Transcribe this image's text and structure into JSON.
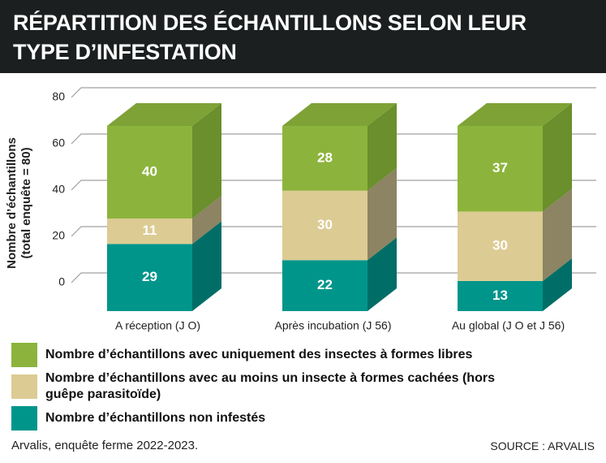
{
  "title": "RÉPARTITION DES ÉCHANTILLONS SELON LEUR TYPE D’INFESTATION",
  "chart_data": {
    "type": "bar3d_stacked",
    "ylabel": [
      "Nombre d’échantillons",
      "(total enquête = 80)"
    ],
    "categories": [
      "A réception (J O)",
      "Après incubation (J 56)",
      "Au global (J O et J 56)"
    ],
    "series": [
      {
        "name": "Nombre d’échantillons avec uniquement des insectes à formes libres",
        "color": "#8cb43c",
        "side": "#6a8f2c",
        "values": [
          40,
          28,
          37
        ]
      },
      {
        "name": "Nombre d’échantillons avec au moins un insecte à formes cachées (hors guêpe parasitoïde)",
        "color": "#dccb93",
        "side": "#8c8462",
        "values": [
          11,
          30,
          30
        ]
      },
      {
        "name": "Nombre d’échantillons non infestés",
        "color": "#00958b",
        "side": "#006e67",
        "values": [
          29,
          22,
          13
        ]
      }
    ],
    "ylim": [
      0,
      80
    ],
    "yticks": [
      0,
      20,
      40,
      60,
      80
    ],
    "grid": true
  },
  "footer": {
    "note": "Arvalis, enquête ferme 2022-2023.",
    "source": "SOURCE : ARVALIS"
  }
}
